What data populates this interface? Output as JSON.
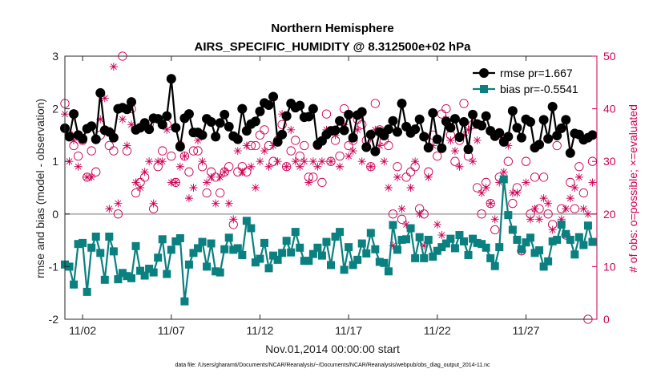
{
  "chart_data": {
    "type": "line",
    "title": "Northern Hemisphere",
    "subtitle": "AIRS_SPECIFIC_HUMIDITY @ 8.312500e+02 hPa",
    "xlabel": "Nov.01,2014 00:00:00 start",
    "ylabel": "rmse and bias (model - observation)",
    "ylabel_right": "# of obs: o=possible; ×=evaluated",
    "xlim": [
      0,
      30
    ],
    "ylim": [
      -2,
      3
    ],
    "ylim_right": [
      0,
      50
    ],
    "x_ticks": [
      {
        "x": 1,
        "label": "11/02"
      },
      {
        "x": 6,
        "label": "11/07"
      },
      {
        "x": 11,
        "label": "11/12"
      },
      {
        "x": 16,
        "label": "11/17"
      },
      {
        "x": 21,
        "label": "11/22"
      },
      {
        "x": 26,
        "label": "11/27"
      }
    ],
    "y_ticks": [
      -2,
      -1,
      0,
      1,
      2,
      3
    ],
    "y_ticks_right": [
      0,
      10,
      20,
      30,
      40,
      50
    ],
    "legend_position": "top-right",
    "footnote": "data file: /Users/gharamti/Documents/NCAR/Reanalysis/~/Documents/NCAR/Reanalysis/webpub/obs_diag_output_2014-11.nc",
    "series": [
      {
        "name": "rmse pr=1.667",
        "color": "#000000",
        "marker": "circle",
        "x": [
          0.0,
          0.25,
          0.5,
          0.75,
          1.0,
          1.25,
          1.5,
          1.75,
          2.0,
          2.25,
          2.5,
          2.75,
          3.0,
          3.25,
          3.5,
          3.75,
          4.0,
          4.25,
          4.5,
          4.75,
          5.0,
          5.25,
          5.5,
          5.75,
          6.0,
          6.25,
          6.5,
          6.75,
          7.0,
          7.25,
          7.5,
          7.75,
          8.0,
          8.25,
          8.5,
          8.75,
          9.0,
          9.25,
          9.5,
          9.75,
          10.0,
          10.25,
          10.5,
          10.75,
          11.0,
          11.25,
          11.5,
          11.75,
          12.0,
          12.25,
          12.5,
          12.75,
          13.0,
          13.25,
          13.5,
          13.75,
          14.0,
          14.25,
          14.5,
          14.75,
          15.0,
          15.25,
          15.5,
          15.75,
          16.0,
          16.25,
          16.5,
          16.75,
          17.0,
          17.25,
          17.5,
          17.75,
          18.0,
          18.25,
          18.5,
          18.75,
          19.0,
          19.25,
          19.5,
          19.75,
          20.0,
          20.25,
          20.5,
          20.75,
          21.0,
          21.25,
          21.5,
          21.75,
          22.0,
          22.25,
          22.5,
          22.75,
          23.0,
          23.25,
          23.5,
          23.75,
          24.0,
          24.25,
          24.5,
          24.75,
          25.0,
          25.25,
          25.5,
          25.75,
          26.0,
          26.25,
          26.5,
          26.75,
          27.0,
          27.25,
          27.5,
          27.75,
          28.0,
          28.25,
          28.5,
          28.75,
          29.0,
          29.25,
          29.5,
          29.75
        ],
        "values": [
          1.63,
          1.47,
          1.9,
          1.5,
          1.43,
          1.62,
          1.67,
          1.42,
          2.3,
          1.59,
          1.56,
          1.45,
          2.0,
          2.02,
          1.99,
          2.13,
          1.6,
          1.64,
          1.73,
          1.61,
          1.82,
          1.81,
          1.7,
          1.86,
          2.57,
          1.64,
          1.28,
          1.82,
          1.9,
          1.55,
          1.55,
          1.5,
          1.81,
          1.75,
          1.47,
          1.73,
          1.89,
          1.66,
          1.48,
          1.42,
          2.0,
          1.58,
          1.71,
          1.76,
          1.95,
          2.11,
          2.07,
          2.23,
          1.37,
          1.51,
          1.86,
          2.1,
          2.02,
          2.06,
          1.84,
          1.85,
          2.0,
          1.32,
          1.39,
          1.51,
          1.58,
          1.59,
          1.77,
          1.59,
          1.89,
          1.45,
          1.88,
          1.94,
          1.27,
          1.51,
          1.19,
          1.56,
          1.49,
          1.61,
          1.77,
          1.56,
          2.1,
          1.66,
          1.54,
          1.61,
          1.8,
          1.47,
          1.26,
          1.92,
          1.42,
          1.25,
          1.76,
          1.64,
          1.81,
          1.46,
          1.75,
          1.23,
          1.89,
          1.71,
          1.68,
          1.86,
          1.58,
          1.48,
          1.54,
          1.37,
          1.47,
          1.96,
          1.64,
          1.45,
          1.8,
          1.75,
          1.26,
          1.32,
          1.79,
          1.43,
          2.04,
          1.49,
          1.63,
          1.79,
          1.16,
          1.53,
          1.51,
          1.41,
          1.45,
          1.5
        ]
      },
      {
        "name": "bias pr=-0.5541",
        "color": "#0a8080",
        "marker": "square",
        "x": [
          0.0,
          0.25,
          0.5,
          0.75,
          1.0,
          1.25,
          1.5,
          1.75,
          2.0,
          2.25,
          2.5,
          2.75,
          3.0,
          3.25,
          3.5,
          3.75,
          4.0,
          4.25,
          4.5,
          4.75,
          5.0,
          5.25,
          5.5,
          5.75,
          6.0,
          6.25,
          6.5,
          6.75,
          7.0,
          7.25,
          7.5,
          7.75,
          8.0,
          8.25,
          8.5,
          8.75,
          9.0,
          9.25,
          9.5,
          9.75,
          10.0,
          10.25,
          10.5,
          10.75,
          11.0,
          11.25,
          11.5,
          11.75,
          12.0,
          12.25,
          12.5,
          12.75,
          13.0,
          13.25,
          13.5,
          13.75,
          14.0,
          14.25,
          14.5,
          14.75,
          15.0,
          15.25,
          15.5,
          15.75,
          16.0,
          16.25,
          16.5,
          16.75,
          17.0,
          17.25,
          17.5,
          17.75,
          18.0,
          18.25,
          18.5,
          18.75,
          19.0,
          19.25,
          19.5,
          19.75,
          20.0,
          20.25,
          20.5,
          20.75,
          21.0,
          21.25,
          21.5,
          21.75,
          22.0,
          22.25,
          22.5,
          22.75,
          23.0,
          23.25,
          23.5,
          23.75,
          24.0,
          24.25,
          24.5,
          24.75,
          25.0,
          25.25,
          25.5,
          25.75,
          26.0,
          26.25,
          26.5,
          26.75,
          27.0,
          27.25,
          27.5,
          27.75,
          28.0,
          28.25,
          28.5,
          28.75,
          29.0,
          29.25,
          29.5,
          29.75
        ],
        "values": [
          -0.96,
          -1.0,
          -1.34,
          -0.57,
          -0.55,
          -1.48,
          -0.64,
          -0.43,
          -0.74,
          -1.25,
          -0.43,
          -0.71,
          -1.24,
          -1.12,
          -1.18,
          -1.22,
          -0.61,
          -1.08,
          -1.17,
          -1.04,
          -1.11,
          -0.83,
          -0.48,
          -1.14,
          -0.68,
          -0.52,
          -0.46,
          -1.66,
          -0.96,
          -0.74,
          -0.65,
          -0.53,
          -1.0,
          -0.56,
          -1.09,
          -1.11,
          -0.67,
          -0.45,
          -0.68,
          -0.65,
          -0.78,
          -0.13,
          -0.27,
          -0.92,
          -0.85,
          -0.55,
          -1.03,
          -0.79,
          -0.87,
          -0.74,
          -0.51,
          -0.73,
          -0.34,
          -0.64,
          -0.89,
          -0.89,
          -0.76,
          -0.64,
          -0.79,
          -0.53,
          -0.97,
          -0.43,
          -0.34,
          -1.06,
          -0.63,
          -0.97,
          -0.87,
          -0.56,
          -0.75,
          -0.36,
          -0.67,
          -0.91,
          -0.93,
          -1.09,
          -0.21,
          -0.68,
          -0.49,
          -0.48,
          -0.27,
          -0.84,
          -0.44,
          -0.84,
          -0.49,
          -0.81,
          -0.7,
          -0.63,
          -0.56,
          -0.47,
          -0.65,
          -0.4,
          -0.52,
          -0.78,
          -0.47,
          -0.55,
          -0.57,
          -0.64,
          -0.84,
          -0.99,
          -0.63,
          0.66,
          -0.02,
          -0.3,
          -0.49,
          -0.67,
          -0.54,
          -0.45,
          -0.74,
          -0.69,
          -1.0,
          -0.9,
          -0.52,
          -0.49,
          -0.2,
          -0.38,
          -0.49,
          -0.77,
          -0.44,
          -0.59,
          -0.22,
          -0.53
        ]
      },
      {
        "name": "obs possible",
        "axis": "right",
        "color": "#cc0055",
        "marker": "open-circle",
        "x": [
          0.0,
          0.25,
          0.5,
          0.75,
          1.0,
          1.25,
          1.5,
          1.75,
          2.0,
          2.25,
          2.5,
          2.75,
          3.0,
          3.25,
          3.5,
          3.75,
          4.0,
          4.25,
          4.5,
          4.75,
          5.0,
          5.25,
          5.5,
          5.75,
          6.0,
          6.25,
          6.5,
          6.75,
          7.0,
          7.25,
          7.5,
          7.75,
          8.0,
          8.25,
          8.5,
          8.75,
          9.0,
          9.25,
          9.5,
          9.75,
          10.0,
          10.25,
          10.5,
          10.75,
          11.0,
          11.25,
          11.5,
          11.75,
          12.0,
          12.25,
          12.5,
          12.75,
          13.0,
          13.25,
          13.5,
          13.75,
          14.0,
          14.25,
          14.5,
          14.75,
          15.0,
          15.25,
          15.5,
          15.75,
          16.0,
          16.25,
          16.5,
          16.75,
          17.0,
          17.25,
          17.5,
          17.75,
          18.0,
          18.25,
          18.5,
          18.75,
          19.0,
          19.25,
          19.5,
          19.75,
          20.0,
          20.25,
          20.5,
          20.75,
          21.0,
          21.25,
          21.5,
          21.75,
          22.0,
          22.25,
          22.5,
          22.75,
          23.0,
          23.25,
          23.5,
          23.75,
          24.0,
          24.25,
          24.5,
          24.75,
          25.0,
          25.25,
          25.5,
          25.75,
          26.0,
          26.25,
          26.5,
          26.75,
          27.0,
          27.25,
          27.5,
          27.75,
          28.0,
          28.25,
          28.5,
          28.75,
          29.0,
          29.25,
          29.5,
          29.75
        ],
        "values": [
          41,
          35,
          33,
          31,
          34,
          27,
          32,
          28,
          35,
          36,
          33,
          32,
          20,
          50,
          32,
          40,
          24,
          26,
          27,
          37,
          21,
          29,
          32,
          37,
          31,
          26,
          33,
          31,
          28,
          32,
          32,
          29,
          24,
          28,
          27,
          24,
          28,
          29,
          18,
          28,
          29,
          28,
          33,
          33,
          35,
          36,
          33,
          30,
          34,
          37,
          29,
          32,
          34,
          31,
          33,
          27,
          27,
          33,
          26,
          39,
          30,
          34,
          31,
          40,
          33,
          34,
          38,
          37,
          34,
          29,
          41,
          36,
          34,
          33,
          20,
          29,
          19,
          27,
          28,
          29,
          21,
          20,
          28,
          35,
          31,
          39,
          40,
          35,
          30,
          34,
          41,
          31,
          37,
          25,
          20,
          26,
          22,
          17,
          27,
          34,
          30,
          22,
          25,
          13,
          30,
          20,
          27,
          21,
          27,
          20,
          18,
          33,
          21,
          16,
          26,
          21,
          29,
          24,
          0,
          30
        ]
      },
      {
        "name": "obs evaluated",
        "axis": "right",
        "color": "#cc0055",
        "marker": "x-star",
        "x": [
          0.0,
          0.25,
          0.5,
          0.75,
          1.0,
          1.25,
          1.5,
          1.75,
          2.0,
          2.25,
          2.5,
          2.75,
          3.0,
          3.25,
          3.5,
          3.75,
          4.0,
          4.25,
          4.5,
          4.75,
          5.0,
          5.25,
          5.5,
          5.75,
          6.0,
          6.25,
          6.5,
          6.75,
          7.0,
          7.25,
          7.5,
          7.75,
          8.0,
          8.25,
          8.5,
          8.75,
          9.0,
          9.25,
          9.5,
          9.75,
          10.0,
          10.25,
          10.5,
          10.75,
          11.0,
          11.25,
          11.5,
          11.75,
          12.0,
          12.25,
          12.5,
          12.75,
          13.0,
          13.25,
          13.5,
          13.75,
          14.0,
          14.25,
          14.5,
          14.75,
          15.0,
          15.25,
          15.5,
          15.75,
          16.0,
          16.25,
          16.5,
          16.75,
          17.0,
          17.25,
          17.5,
          17.75,
          18.0,
          18.25,
          18.5,
          18.75,
          19.0,
          19.25,
          19.5,
          19.75,
          20.0,
          20.25,
          20.5,
          20.75,
          21.0,
          21.25,
          21.5,
          21.75,
          22.0,
          22.25,
          22.5,
          22.75,
          23.0,
          23.25,
          23.5,
          23.75,
          24.0,
          24.25,
          24.5,
          24.75,
          25.0,
          25.25,
          25.5,
          25.75,
          26.0,
          26.25,
          26.5,
          26.75,
          27.0,
          27.25,
          27.5,
          27.75,
          28.0,
          28.25,
          28.5,
          28.75,
          29.0,
          29.25,
          29.5,
          29.75
        ],
        "values": [
          39,
          30,
          34,
          29,
          34,
          27,
          27,
          34,
          38,
          42,
          21,
          48,
          22,
          38,
          33,
          37,
          26,
          25,
          28,
          30,
          22,
          30,
          30,
          36,
          26,
          26,
          29,
          31,
          23,
          25,
          34,
          30,
          26,
          27,
          22,
          27,
          28,
          22,
          19,
          32,
          28,
          33,
          29,
          25,
          30,
          32,
          29,
          33,
          30,
          39,
          29,
          36,
          30,
          29,
          30,
          26,
          30,
          29,
          30,
          36,
          30,
          35,
          29,
          37,
          31,
          32,
          36,
          30,
          33,
          29,
          36,
          33,
          30,
          25,
          14,
          27,
          21,
          18,
          25,
          30,
          20,
          14,
          27,
          33,
          18,
          16,
          38,
          34,
          32,
          29,
          35,
          36,
          30,
          34,
          24,
          25,
          22,
          19,
          26,
          28,
          33,
          24,
          24,
          13,
          26,
          19,
          21,
          19,
          23,
          22,
          17,
          35,
          19,
          21,
          23,
          25,
          27,
          21,
          20,
          26
        ]
      }
    ]
  }
}
